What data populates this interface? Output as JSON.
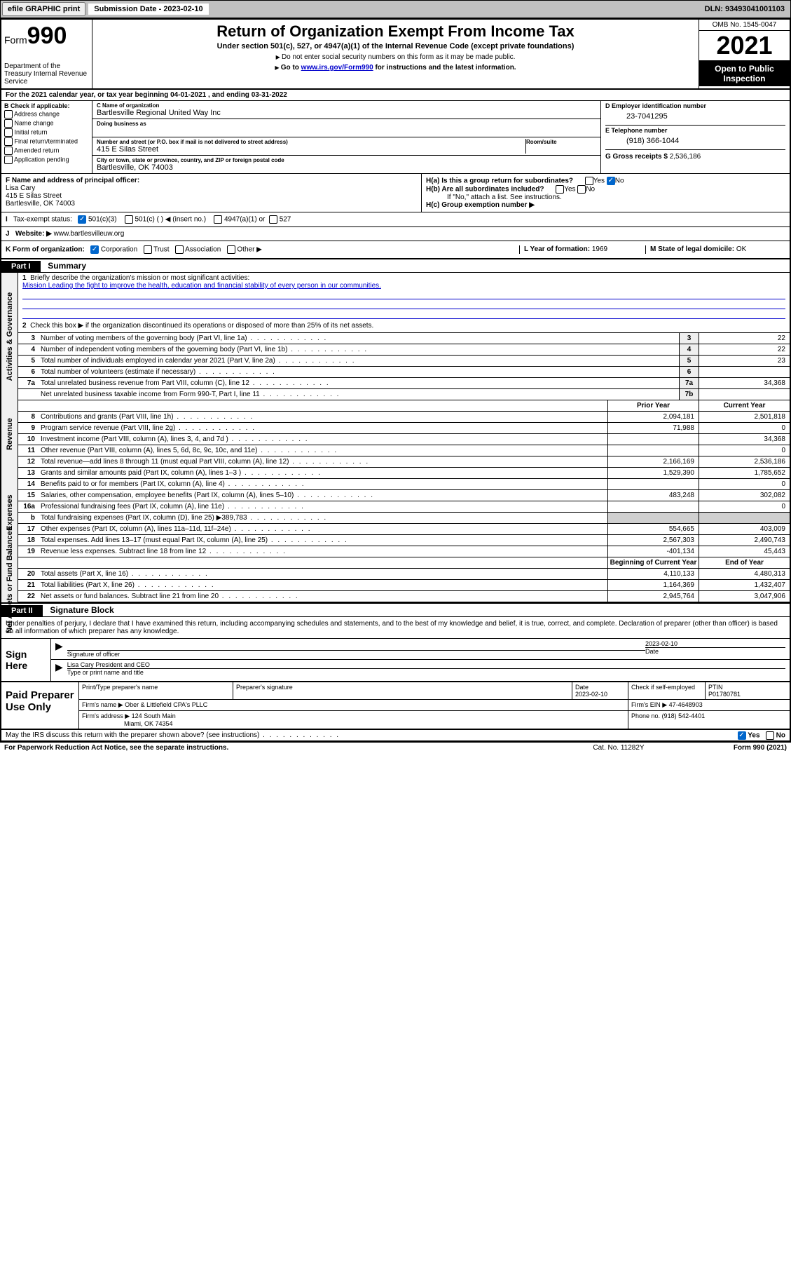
{
  "topbar": {
    "efile": "efile GRAPHIC print",
    "subdate_label": "Submission Date - 2023-02-10",
    "dln": "DLN: 93493041001103"
  },
  "header": {
    "form": "Form",
    "num": "990",
    "dept": "Department of the Treasury\nInternal Revenue Service",
    "title": "Return of Organization Exempt From Income Tax",
    "sub": "Under section 501(c), 527, or 4947(a)(1) of the Internal Revenue Code (except private foundations)",
    "nossi": "Do not enter social security numbers on this form as it may be made public.",
    "goto": "Go to",
    "gotolink": "www.irs.gov/Form990",
    "gotorest": "for instructions and the latest information.",
    "omb": "OMB No. 1545-0047",
    "year": "2021",
    "open": "Open to Public Inspection"
  },
  "rowA": "For the 2021 calendar year, or tax year beginning 04-01-2021   , and ending 03-31-2022",
  "colB": {
    "hd": "B Check if applicable:",
    "opts": [
      "Address change",
      "Name change",
      "Initial return",
      "Final return/terminated",
      "Amended return",
      "Application pending"
    ]
  },
  "colC": {
    "nameLab": "C Name of organization",
    "name": "Bartlesville Regional United Way Inc",
    "dbaLab": "Doing business as",
    "addrLab": "Number and street (or P.O. box if mail is not delivered to street address)",
    "roomLab": "Room/suite",
    "addr": "415 E Silas Street",
    "cityLab": "City or town, state or province, country, and ZIP or foreign postal code",
    "city": "Bartlesville, OK  74003"
  },
  "colD": {
    "einLab": "D Employer identification number",
    "ein": "23-7041295",
    "telLab": "E Telephone number",
    "tel": "(918) 366-1044",
    "grossLab": "G Gross receipts $",
    "gross": "2,536,186"
  },
  "rowF": {
    "lab": "F Name and address of principal officer:",
    "name": "Lisa Cary",
    "addr1": "415 E Silas Street",
    "addr2": "Bartlesville, OK  74003"
  },
  "rowH": {
    "ha": "H(a)  Is this a group return for subordinates?",
    "hb": "H(b)  Are all subordinates included?",
    "hbnote": "If \"No,\" attach a list. See instructions.",
    "hc": "H(c)  Group exemption number ▶",
    "yes": "Yes",
    "no": "No"
  },
  "rowI": {
    "lab": "Tax-exempt status:",
    "o1": "501(c)(3)",
    "o2": "501(c) (  ) ◀ (insert no.)",
    "o3": "4947(a)(1) or",
    "o4": "527"
  },
  "rowJ": {
    "lab": "Website: ▶",
    "val": "www.bartlesvilleuw.org"
  },
  "rowK": {
    "lab": "K Form of organization:",
    "o1": "Corporation",
    "o2": "Trust",
    "o3": "Association",
    "o4": "Other ▶",
    "yearLab": "L Year of formation:",
    "year": "1969",
    "stateLab": "M State of legal domicile:",
    "state": "OK"
  },
  "part1": {
    "hdr": "Part I",
    "title": "Summary",
    "l1": "Briefly describe the organization's mission or most significant activities:",
    "mission": "Mission Leading the fight to improve the health, education and financial stability of every person in our communities.",
    "l2": "Check this box ▶        if the organization discontinued its operations or disposed of more than 25% of its net assets.",
    "lines": [
      {
        "n": "3",
        "d": "Number of voting members of the governing body (Part VI, line 1a)",
        "box": "3",
        "v": "22"
      },
      {
        "n": "4",
        "d": "Number of independent voting members of the governing body (Part VI, line 1b)",
        "box": "4",
        "v": "22"
      },
      {
        "n": "5",
        "d": "Total number of individuals employed in calendar year 2021 (Part V, line 2a)",
        "box": "5",
        "v": "23"
      },
      {
        "n": "6",
        "d": "Total number of volunteers (estimate if necessary)",
        "box": "6",
        "v": ""
      },
      {
        "n": "7a",
        "d": "Total unrelated business revenue from Part VIII, column (C), line 12",
        "box": "7a",
        "v": "34,368"
      },
      {
        "n": "",
        "d": "Net unrelated business taxable income from Form 990-T, Part I, line 11",
        "box": "7b",
        "v": ""
      }
    ],
    "priorLab": "Prior Year",
    "currLab": "Current Year",
    "revenue": [
      {
        "n": "8",
        "d": "Contributions and grants (Part VIII, line 1h)",
        "p": "2,094,181",
        "c": "2,501,818"
      },
      {
        "n": "9",
        "d": "Program service revenue (Part VIII, line 2g)",
        "p": "71,988",
        "c": "0"
      },
      {
        "n": "10",
        "d": "Investment income (Part VIII, column (A), lines 3, 4, and 7d )",
        "p": "",
        "c": "34,368"
      },
      {
        "n": "11",
        "d": "Other revenue (Part VIII, column (A), lines 5, 6d, 8c, 9c, 10c, and 11e)",
        "p": "",
        "c": "0"
      },
      {
        "n": "12",
        "d": "Total revenue—add lines 8 through 11 (must equal Part VIII, column (A), line 12)",
        "p": "2,166,169",
        "c": "2,536,186"
      }
    ],
    "expenses": [
      {
        "n": "13",
        "d": "Grants and similar amounts paid (Part IX, column (A), lines 1–3 )",
        "p": "1,529,390",
        "c": "1,785,652"
      },
      {
        "n": "14",
        "d": "Benefits paid to or for members (Part IX, column (A), line 4)",
        "p": "",
        "c": "0"
      },
      {
        "n": "15",
        "d": "Salaries, other compensation, employee benefits (Part IX, column (A), lines 5–10)",
        "p": "483,248",
        "c": "302,082"
      },
      {
        "n": "16a",
        "d": "Professional fundraising fees (Part IX, column (A), line 11e)",
        "p": "",
        "c": "0"
      },
      {
        "n": "b",
        "d": "Total fundraising expenses (Part IX, column (D), line 25) ▶389,783",
        "p": "GRAY",
        "c": "GRAY"
      },
      {
        "n": "17",
        "d": "Other expenses (Part IX, column (A), lines 11a–11d, 11f–24e)",
        "p": "554,665",
        "c": "403,009"
      },
      {
        "n": "18",
        "d": "Total expenses. Add lines 13–17 (must equal Part IX, column (A), line 25)",
        "p": "2,567,303",
        "c": "2,490,743"
      },
      {
        "n": "19",
        "d": "Revenue less expenses. Subtract line 18 from line 12",
        "p": "-401,134",
        "c": "45,443"
      }
    ],
    "begLab": "Beginning of Current Year",
    "endLab": "End of Year",
    "netassets": [
      {
        "n": "20",
        "d": "Total assets (Part X, line 16)",
        "p": "4,110,133",
        "c": "4,480,313"
      },
      {
        "n": "21",
        "d": "Total liabilities (Part X, line 26)",
        "p": "1,164,369",
        "c": "1,432,407"
      },
      {
        "n": "22",
        "d": "Net assets or fund balances. Subtract line 21 from line 20",
        "p": "2,945,764",
        "c": "3,047,906"
      }
    ],
    "vlabels": {
      "gov": "Activities & Governance",
      "rev": "Revenue",
      "exp": "Expenses",
      "net": "Net Assets or Fund Balances"
    }
  },
  "part2": {
    "hdr": "Part II",
    "title": "Signature Block",
    "decl": "Under penalties of perjury, I declare that I have examined this return, including accompanying schedules and statements, and to the best of my knowledge and belief, it is true, correct, and complete. Declaration of preparer (other than officer) is based on all information of which preparer has any knowledge.",
    "signhere": "Sign Here",
    "sigoff": "Signature of officer",
    "sigdate": "2023-02-10",
    "dateLab": "Date",
    "offname": "Lisa Cary President and CEO",
    "typeLab": "Type or print name and title",
    "paid": "Paid Preparer Use Only",
    "prepnameLab": "Print/Type preparer's name",
    "prepsigLab": "Preparer's signature",
    "prepdateLab": "Date",
    "prepdate": "2023-02-10",
    "checkLab": "Check        if self-employed",
    "ptinLab": "PTIN",
    "ptin": "P01780781",
    "firmnameLab": "Firm's name    ▶",
    "firmname": "Ober & Littlefield CPA's PLLC",
    "firmeinLab": "Firm's EIN ▶",
    "firmein": "47-4648903",
    "firmaddrLab": "Firm's address ▶",
    "firmaddr1": "124 South Main",
    "firmaddr2": "Miami, OK  74354",
    "phoneLab": "Phone no.",
    "phone": "(918) 542-4401",
    "discuss": "May the IRS discuss this return with the preparer shown above? (see instructions)"
  },
  "footer": {
    "a": "For Paperwork Reduction Act Notice, see the separate instructions.",
    "b": "Cat. No. 11282Y",
    "c": "Form 990 (2021)"
  }
}
